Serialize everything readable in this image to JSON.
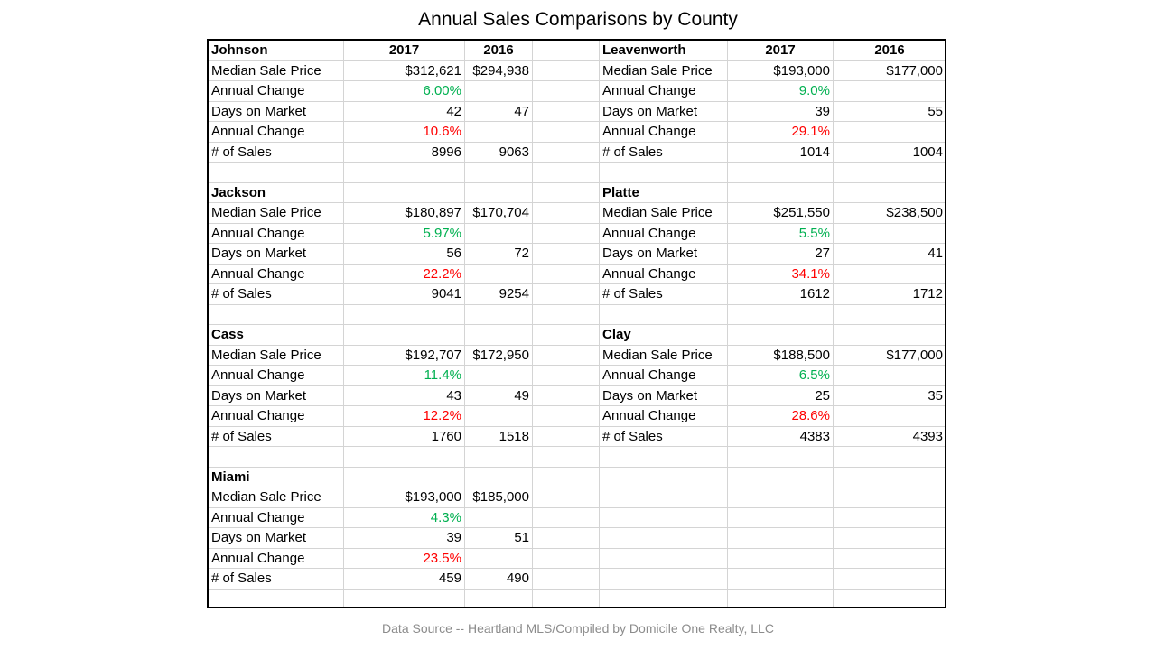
{
  "title": "Annual Sales Comparisons by County",
  "source": "Data Source -- Heartland MLS/Compiled by Domicile One Realty, LLC",
  "colors": {
    "increase": "#00b050",
    "decrease": "#ff0000",
    "grid": "#d4d4d4"
  },
  "chart_data": {
    "type": "table",
    "title": "Annual Sales Comparisons by County",
    "columns": [
      "2017",
      "2016"
    ],
    "row_labels": [
      "Median Sale Price",
      "Annual Change",
      "Days on Market",
      "Annual Change",
      "# of Sales"
    ],
    "counties": [
      {
        "name": "Johnson",
        "median_2017": "$312,621",
        "median_2016": "$294,938",
        "price_change": "6.00%",
        "dom_2017": "42",
        "dom_2016": "47",
        "dom_change": "10.6%",
        "sales_2017": "8996",
        "sales_2016": "9063"
      },
      {
        "name": "Leavenworth",
        "median_2017": "$193,000",
        "median_2016": "$177,000",
        "price_change": "9.0%",
        "dom_2017": "39",
        "dom_2016": "55",
        "dom_change": "29.1%",
        "sales_2017": "1014",
        "sales_2016": "1004"
      },
      {
        "name": "Jackson",
        "median_2017": "$180,897",
        "median_2016": "$170,704",
        "price_change": "5.97%",
        "dom_2017": "56",
        "dom_2016": "72",
        "dom_change": "22.2%",
        "sales_2017": "9041",
        "sales_2016": "9254"
      },
      {
        "name": "Platte",
        "median_2017": "$251,550",
        "median_2016": "$238,500",
        "price_change": "5.5%",
        "dom_2017": "27",
        "dom_2016": "41",
        "dom_change": "34.1%",
        "sales_2017": "1612",
        "sales_2016": "1712"
      },
      {
        "name": "Cass",
        "median_2017": "$192,707",
        "median_2016": "$172,950",
        "price_change": "11.4%",
        "dom_2017": "43",
        "dom_2016": "49",
        "dom_change": "12.2%",
        "sales_2017": "1760",
        "sales_2016": "1518"
      },
      {
        "name": "Clay",
        "median_2017": "$188,500",
        "median_2016": "$177,000",
        "price_change": "6.5%",
        "dom_2017": "25",
        "dom_2016": "35",
        "dom_change": "28.6%",
        "sales_2017": "4383",
        "sales_2016": "4393"
      },
      {
        "name": "Miami",
        "median_2017": "$193,000",
        "median_2016": "$185,000",
        "price_change": "4.3%",
        "dom_2017": "39",
        "dom_2016": "51",
        "dom_change": "23.5%",
        "sales_2017": "459",
        "sales_2016": "490"
      }
    ]
  }
}
